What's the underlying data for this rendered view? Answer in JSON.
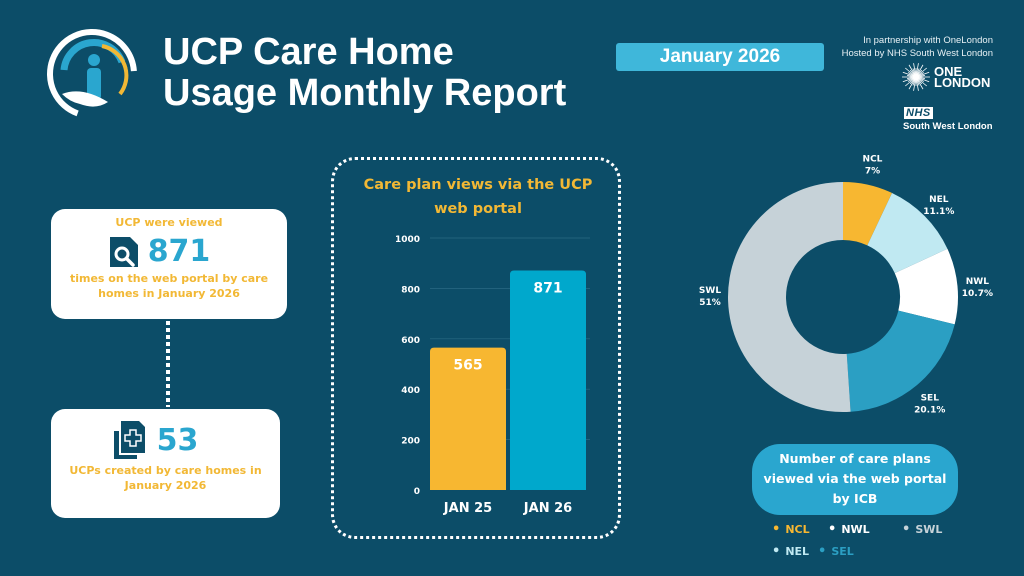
{
  "header": {
    "title_line1": "UCP Care Home",
    "title_line2": "Usage Monthly Report",
    "date_badge": "January 2026",
    "partnership_line1": "In partnership with OneLondon",
    "partnership_line2": "Hosted by NHS South West London",
    "onelondon_line1": "ONE",
    "onelondon_line2": "LONDON",
    "nhs_logo": "NHS",
    "nhs_sub": "South West London"
  },
  "stats": {
    "viewed": {
      "heading": "UCP were viewed",
      "value": "871",
      "caption_line1": "times on the web portal by care",
      "caption_line2": "homes in January 2026",
      "icon": "document-search-icon"
    },
    "created": {
      "value": "53",
      "caption_line1": "UCPs created by care homes in",
      "caption_line2": "January 2026",
      "icon": "document-add-icon"
    }
  },
  "colors": {
    "background": "#0c4d68",
    "yellow": "#f7b731",
    "blue": "#00a8cc",
    "light_blue": "#c0e9f2",
    "white": "#ffffff",
    "sel_blue": "#2b9fc3",
    "grey": "#c6d2d8"
  },
  "chart_data": [
    {
      "type": "bar",
      "title_line1": "Care plan views via the UCP",
      "title_line2": "web portal",
      "categories": [
        "JAN 25",
        "JAN 26"
      ],
      "values": [
        565,
        871
      ],
      "value_labels": [
        "565",
        "871"
      ],
      "colors": [
        "#f7b731",
        "#00a8cc"
      ],
      "ylim": [
        0,
        1000
      ],
      "yticks": [
        "0",
        "200",
        "400",
        "600",
        "800",
        "1000"
      ],
      "ytick_values": [
        0,
        200,
        400,
        600,
        800,
        1000
      ],
      "grid": true
    },
    {
      "type": "pie",
      "subtype": "donut",
      "title_line1": "Number of care plans",
      "title_line2": "viewed via the web portal",
      "title_line3": "by ICB",
      "slices": [
        {
          "name": "NCL",
          "value": 7,
          "label": "7%",
          "color": "#f7b731"
        },
        {
          "name": "NEL",
          "value": 11.1,
          "label": "11.1%",
          "color": "#c0e9f2"
        },
        {
          "name": "NWL",
          "value": 10.7,
          "label": "10.7%",
          "color": "#ffffff"
        },
        {
          "name": "SEL",
          "value": 20.1,
          "label": "20.1%",
          "color": "#2b9fc3"
        },
        {
          "name": "SWL",
          "value": 51,
          "label": "51%",
          "color": "#c6d2d8"
        }
      ],
      "legend": [
        {
          "name": "NCL",
          "color": "#f7b731"
        },
        {
          "name": "NWL",
          "color": "#ffffff"
        },
        {
          "name": "SWL",
          "color": "#c6d2d8"
        },
        {
          "name": "NEL",
          "color": "#c0e9f2"
        },
        {
          "name": "SEL",
          "color": "#2b9fc3"
        }
      ],
      "legend_position": "bottom"
    }
  ]
}
